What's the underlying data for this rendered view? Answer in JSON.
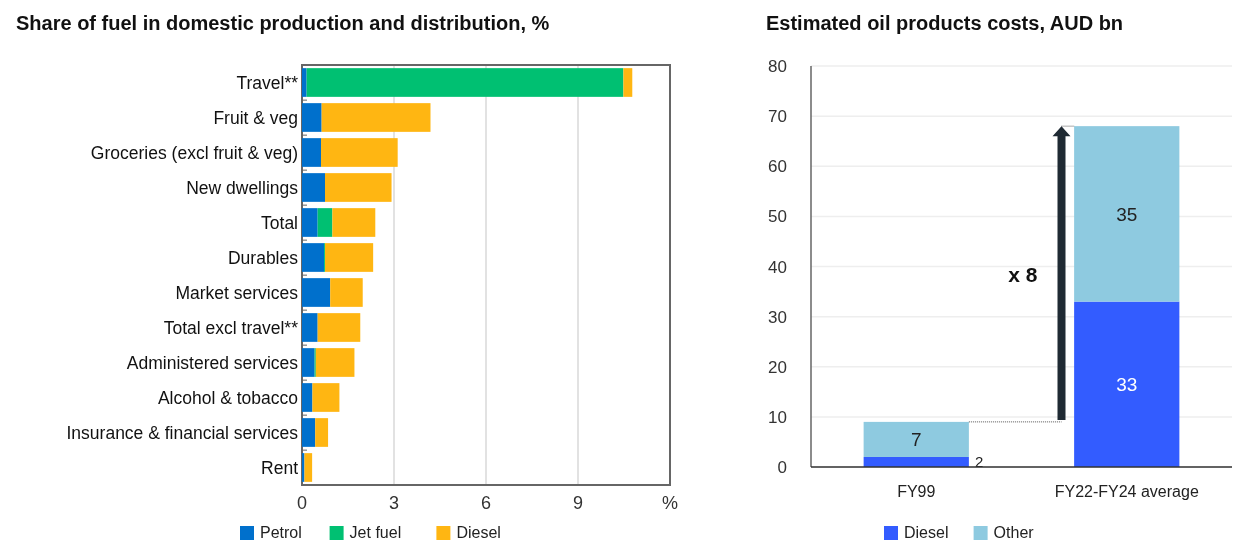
{
  "chart_data": [
    {
      "type": "bar",
      "title": "Share of fuel in domestic production and distribution, %",
      "orientation": "horizontal",
      "stacked": true,
      "categories": [
        "Travel**",
        "Fruit & veg",
        "Groceries (excl fruit & veg)",
        "New dwellings",
        "Total",
        "Durables",
        "Market services",
        "Total excl travel**",
        "Administered services",
        "Alcohol & tobacco",
        "Insurance & financial services",
        "Rent"
      ],
      "series": [
        {
          "name": "Petrol",
          "color": "#0070cc",
          "values": [
            0.15,
            0.64,
            0.62,
            0.75,
            0.51,
            0.72,
            0.92,
            0.51,
            0.41,
            0.34,
            0.43,
            0.08
          ]
        },
        {
          "name": "Jet fuel",
          "color": "#00c072",
          "values": [
            10.33,
            0,
            0,
            0,
            0.48,
            0.03,
            0,
            0,
            0.04,
            0,
            0,
            0
          ]
        },
        {
          "name": "Diesel",
          "color": "#ffb612",
          "values": [
            0.29,
            3.55,
            2.5,
            2.17,
            1.4,
            1.57,
            1.06,
            1.39,
            1.26,
            0.88,
            0.42,
            0.25
          ]
        }
      ],
      "xlim": [
        0,
        12
      ],
      "xticks": [
        0,
        3,
        6,
        9,
        {
          "value": 12,
          "label": "%"
        }
      ],
      "grid": "x",
      "legend": "bottom"
    },
    {
      "type": "bar",
      "title": "Estimated oil products costs, AUD bn",
      "stacked": true,
      "categories": [
        "FY99",
        "FY22-FY24 average"
      ],
      "series": [
        {
          "name": "Diesel",
          "color": "#335cff",
          "values": [
            2,
            33
          ]
        },
        {
          "name": "Other",
          "color": "#8ecae0",
          "values": [
            7,
            35
          ]
        }
      ],
      "ylim": [
        0,
        80
      ],
      "yticks": [
        0,
        10,
        20,
        30,
        40,
        50,
        60,
        70,
        80
      ],
      "grid": "y",
      "legend": "bottom",
      "data_labels": true,
      "annotations": [
        "x 8"
      ]
    }
  ]
}
